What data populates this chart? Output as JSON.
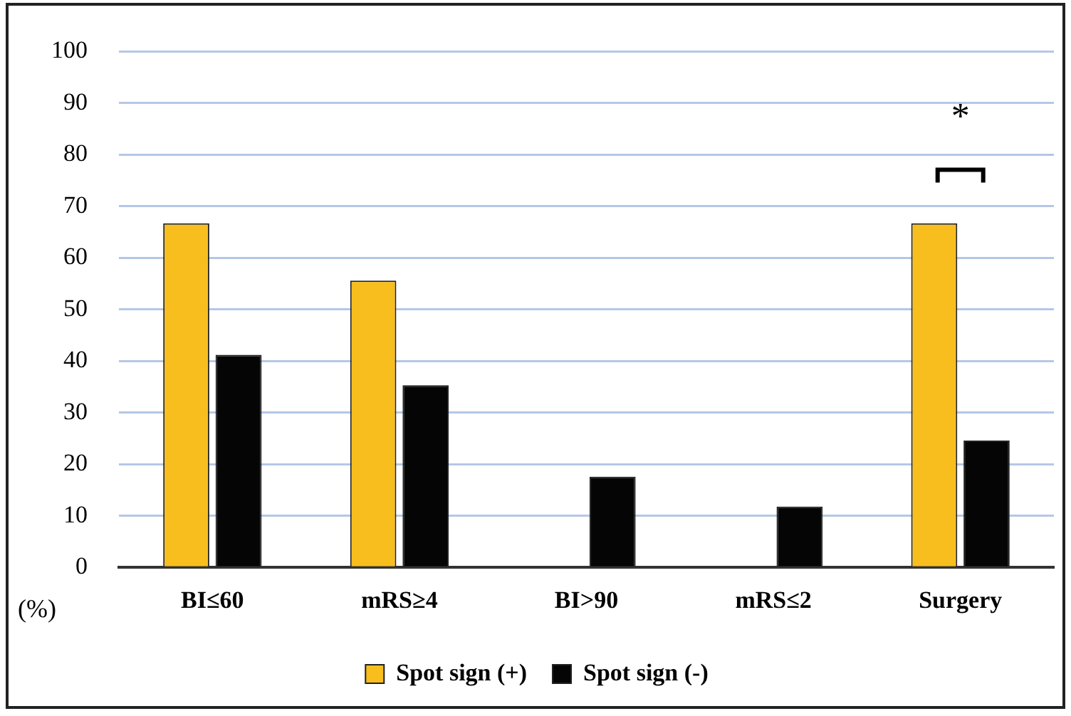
{
  "chart_data": {
    "type": "bar",
    "ylabel": "(%)",
    "categories": [
      "BI≤60",
      "mRS≥4",
      "BI>90",
      "mRS≤2",
      "Surgery"
    ],
    "series": [
      {
        "name": "Spot sign (+)",
        "color": "#f7be1e",
        "values": [
          66.7,
          55.6,
          0,
          0,
          66.7
        ]
      },
      {
        "name": "Spot sign (-)",
        "color": "#050505",
        "values": [
          41.2,
          35.3,
          17.6,
          11.8,
          24.6
        ]
      }
    ],
    "ylim": [
      0,
      100
    ],
    "yticks": [
      0,
      10,
      20,
      30,
      40,
      50,
      60,
      70,
      80,
      90,
      100
    ],
    "grid": "y",
    "legend": "bottom",
    "annotations": [
      "*"
    ]
  }
}
